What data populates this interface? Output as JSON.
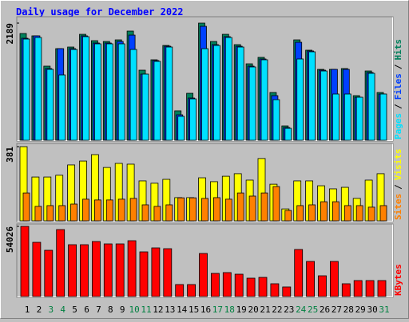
{
  "chart_data": [
    {
      "type": "bar",
      "title": "Daily usage for December 2022",
      "separator": "/",
      "ylim": [
        0,
        2189
      ],
      "yticks": [
        2189
      ],
      "series": [
        {
          "name": "Hits",
          "color": "#00805c",
          "values": [
            1995,
            1951,
            1385,
            1712,
            1742,
            1980,
            1861,
            1846,
            1876,
            2040,
            1310,
            1504,
            1772,
            551,
            878,
            2189,
            1846,
            1980,
            1787,
            1429,
            1549,
            893,
            268,
            1876,
            1683,
            1325,
            1325,
            1340,
            834,
            1295,
            893
          ]
        },
        {
          "name": "Files",
          "color": "#0040ff",
          "values": [
            1906,
            1951,
            1340,
            1712,
            1712,
            1951,
            1817,
            1817,
            1846,
            1965,
            1236,
            1489,
            1757,
            476,
            789,
            2129,
            1787,
            1936,
            1757,
            1385,
            1519,
            834,
            238,
            1831,
            1668,
            1310,
            1325,
            1325,
            804,
            1266,
            864
          ]
        },
        {
          "name": "Pages",
          "color": "#00e0ff",
          "values": [
            1891,
            1921,
            1325,
            1221,
            1697,
            1936,
            1802,
            1802,
            1802,
            1697,
            1236,
            1474,
            1742,
            447,
            774,
            1712,
            1772,
            1921,
            1742,
            1370,
            1504,
            759,
            223,
            1519,
            1653,
            1295,
            864,
            864,
            804,
            1251,
            864
          ]
        }
      ]
    },
    {
      "type": "bar",
      "separator": "/",
      "ylim": [
        0,
        381
      ],
      "yticks": [
        381
      ],
      "series": [
        {
          "name": "Visits",
          "color": "#ffff00",
          "values": [
            381,
            225,
            225,
            234,
            287,
            307,
            340,
            274,
            295,
            291,
            205,
            193,
            213,
            119,
            119,
            221,
            201,
            229,
            242,
            209,
            320,
            188,
            61,
            205,
            205,
            180,
            164,
            172,
            115,
            209,
            242
          ]
        },
        {
          "name": "Sites",
          "color": "#ff8000",
          "values": [
            143,
            74,
            78,
            78,
            86,
            111,
            107,
            107,
            111,
            115,
            82,
            74,
            82,
            118,
            118,
            115,
            119,
            111,
            143,
            127,
            143,
            176,
            53,
            78,
            82,
            98,
            98,
            78,
            78,
            70,
            78
          ]
        }
      ]
    },
    {
      "type": "bar",
      "ylim": [
        0,
        54026
      ],
      "yticks": [
        54026
      ],
      "categories": [
        "1",
        "2",
        "3",
        "4",
        "5",
        "6",
        "7",
        "8",
        "9",
        "10",
        "11",
        "12",
        "13",
        "14",
        "15",
        "16",
        "17",
        "18",
        "19",
        "20",
        "21",
        "22",
        "23",
        "24",
        "25",
        "26",
        "27",
        "28",
        "29",
        "30",
        "31"
      ],
      "category_color": "#000000",
      "highlight_color": "#008040",
      "highlight_indices": [
        2,
        3,
        9,
        10,
        16,
        17,
        23,
        24,
        30
      ],
      "series": [
        {
          "name": "KBytes",
          "color": "#ff0000",
          "values": [
            54026,
            41745,
            35606,
            51568,
            39904,
            39904,
            42359,
            40517,
            40517,
            42973,
            34378,
            37448,
            36834,
            9208,
            9208,
            33151,
            17803,
            18417,
            17189,
            14120,
            14733,
            9822,
            7367,
            36220,
            27012,
            15961,
            27012,
            9822,
            12278,
            12278,
            12278
          ]
        }
      ]
    }
  ]
}
